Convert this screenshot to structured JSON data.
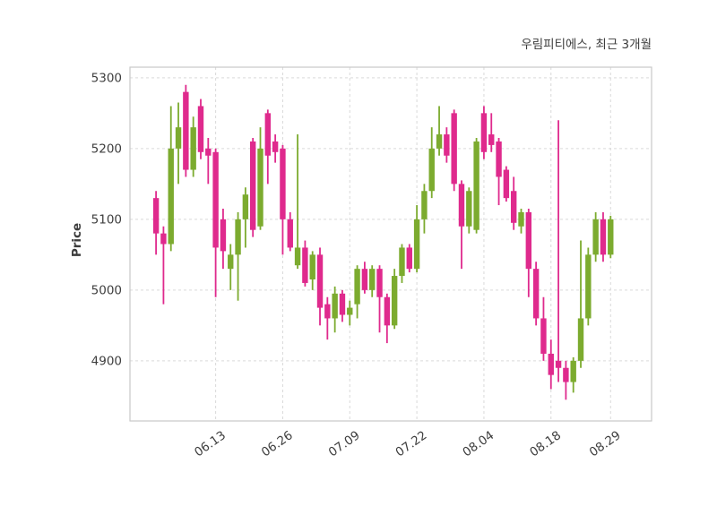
{
  "chart_data": {
    "type": "candlestick",
    "title": "우림피티에스, 최근 3개월",
    "ylabel": "Price",
    "ylim": [
      4815,
      5315
    ],
    "xlim": [
      -3.5,
      66.5
    ],
    "yticks": [
      4900,
      5000,
      5100,
      5200,
      5300
    ],
    "xticks": [
      {
        "i": 8,
        "label": "06.13"
      },
      {
        "i": 17,
        "label": "06.26"
      },
      {
        "i": 26,
        "label": "07.09"
      },
      {
        "i": 35,
        "label": "07.22"
      },
      {
        "i": 44,
        "label": "08.04"
      },
      {
        "i": 53,
        "label": "08.18"
      },
      {
        "i": 61,
        "label": "08.29"
      }
    ],
    "ohlc_order": "open,high,low,close",
    "candles": [
      [
        5130,
        5140,
        5050,
        5080
      ],
      [
        5080,
        5090,
        4980,
        5065
      ],
      [
        5065,
        5260,
        5055,
        5200
      ],
      [
        5200,
        5265,
        5150,
        5230
      ],
      [
        5280,
        5290,
        5160,
        5170
      ],
      [
        5170,
        5245,
        5160,
        5230
      ],
      [
        5260,
        5270,
        5185,
        5195
      ],
      [
        5200,
        5215,
        5150,
        5190
      ],
      [
        5195,
        5200,
        4990,
        5060
      ],
      [
        5100,
        5115,
        5030,
        5055
      ],
      [
        5030,
        5065,
        5000,
        5050
      ],
      [
        5050,
        5110,
        4985,
        5100
      ],
      [
        5100,
        5145,
        5060,
        5135
      ],
      [
        5210,
        5215,
        5075,
        5085
      ],
      [
        5090,
        5230,
        5085,
        5200
      ],
      [
        5250,
        5255,
        5150,
        5190
      ],
      [
        5210,
        5220,
        5180,
        5195
      ],
      [
        5200,
        5205,
        5050,
        5100
      ],
      [
        5100,
        5110,
        5055,
        5060
      ],
      [
        5035,
        5220,
        5030,
        5060
      ],
      [
        5060,
        5070,
        5005,
        5010
      ],
      [
        5015,
        5055,
        5000,
        5050
      ],
      [
        5050,
        5060,
        4950,
        4975
      ],
      [
        4980,
        4990,
        4930,
        4960
      ],
      [
        4960,
        5005,
        4940,
        4995
      ],
      [
        4995,
        5000,
        4955,
        4965
      ],
      [
        4965,
        4985,
        4950,
        4975
      ],
      [
        4980,
        5035,
        4960,
        5030
      ],
      [
        5030,
        5040,
        4995,
        5000
      ],
      [
        5000,
        5035,
        4990,
        5030
      ],
      [
        5030,
        5035,
        4940,
        4990
      ],
      [
        4990,
        4995,
        4925,
        4950
      ],
      [
        4950,
        5030,
        4945,
        5020
      ],
      [
        5020,
        5065,
        5010,
        5060
      ],
      [
        5060,
        5065,
        5025,
        5030
      ],
      [
        5030,
        5120,
        5025,
        5100
      ],
      [
        5100,
        5150,
        5080,
        5140
      ],
      [
        5140,
        5230,
        5130,
        5200
      ],
      [
        5200,
        5260,
        5190,
        5220
      ],
      [
        5220,
        5230,
        5180,
        5190
      ],
      [
        5250,
        5255,
        5140,
        5150
      ],
      [
        5150,
        5155,
        5030,
        5090
      ],
      [
        5090,
        5145,
        5080,
        5140
      ],
      [
        5085,
        5215,
        5080,
        5210
      ],
      [
        5250,
        5260,
        5185,
        5195
      ],
      [
        5220,
        5250,
        5195,
        5205
      ],
      [
        5210,
        5215,
        5120,
        5160
      ],
      [
        5170,
        5175,
        5125,
        5130
      ],
      [
        5140,
        5160,
        5085,
        5095
      ],
      [
        5090,
        5115,
        5080,
        5110
      ],
      [
        5110,
        5115,
        4990,
        5030
      ],
      [
        5030,
        5040,
        4950,
        4960
      ],
      [
        4960,
        4990,
        4900,
        4910
      ],
      [
        4910,
        4930,
        4860,
        4880
      ],
      [
        4900,
        5240,
        4870,
        4890
      ],
      [
        4890,
        4900,
        4845,
        4870
      ],
      [
        4870,
        4905,
        4855,
        4900
      ],
      [
        4900,
        5070,
        4890,
        4960
      ],
      [
        4960,
        5060,
        4950,
        5050
      ],
      [
        5050,
        5110,
        5040,
        5100
      ],
      [
        5100,
        5110,
        5040,
        5050
      ],
      [
        5050,
        5105,
        5045,
        5100
      ]
    ],
    "colors": {
      "up": "#7cab2f",
      "down": "#df2a8d",
      "grid": "#d9d9d9",
      "border": "#c9c9c9",
      "tick_text": "#3e3e3e",
      "background": "#ffffff"
    },
    "grid": "dashed",
    "legend": "none"
  }
}
